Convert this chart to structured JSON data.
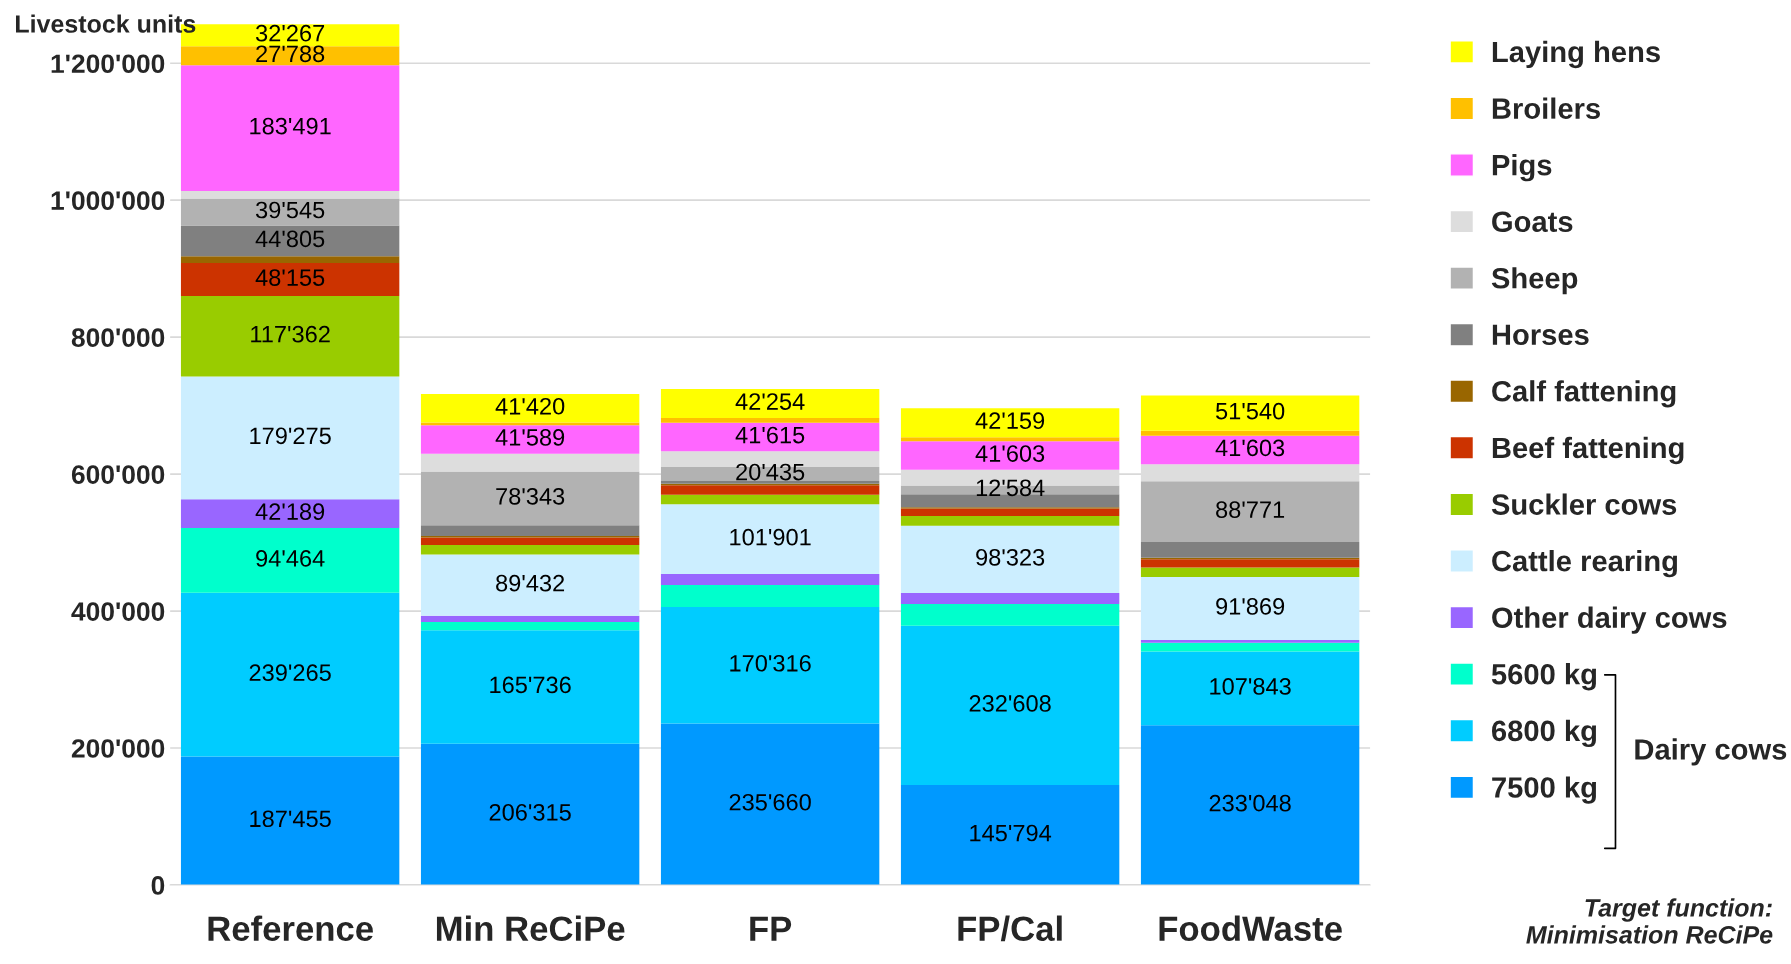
{
  "chart_data": {
    "type": "bar",
    "stacked": true,
    "ylabel": "Livestock units",
    "categories": [
      "Reference",
      "Min ReCiPe",
      "FP",
      "FP/Cal",
      "FoodWaste"
    ],
    "ylim": [
      0,
      1260000
    ],
    "yticks": [
      {
        "value": 0,
        "label": "0"
      },
      {
        "value": 200000,
        "label": "200'000"
      },
      {
        "value": 400000,
        "label": "400'000"
      },
      {
        "value": 600000,
        "label": "600'000"
      },
      {
        "value": 800000,
        "label": "800'000"
      },
      {
        "value": 1000000,
        "label": "1'000'000"
      },
      {
        "value": 1200000,
        "label": "1'200'000"
      }
    ],
    "grid": "y",
    "legend": "right",
    "series": [
      {
        "name": "7500 kg",
        "color": "#0099ff",
        "values": [
          187455,
          206315,
          235660,
          145794,
          233048
        ],
        "value_labels": [
          "187'455",
          "206'315",
          "235'660",
          "145'794",
          "233'048"
        ]
      },
      {
        "name": "6800 kg",
        "color": "#00ccff",
        "values": [
          239265,
          165736,
          170316,
          232608,
          107843
        ],
        "value_labels": [
          "239'265",
          "165'736",
          "170'316",
          "232'608",
          "107'843"
        ]
      },
      {
        "name": "5600 kg",
        "color": "#00ffcc",
        "values": [
          94464,
          12000,
          32000,
          32000,
          13000
        ],
        "value_labels": [
          "94'464",
          null,
          null,
          null,
          null
        ]
      },
      {
        "name": "Other dairy cows",
        "color": "#9966ff",
        "values": [
          42189,
          9000,
          16000,
          16000,
          4000
        ],
        "value_labels": [
          "42'189",
          null,
          null,
          null,
          null
        ]
      },
      {
        "name": "Cattle rearing",
        "color": "#cceeff",
        "values": [
          179275,
          89432,
          101901,
          98323,
          91869
        ],
        "value_labels": [
          "179'275",
          "89'432",
          "101'901",
          "98'323",
          "91'869"
        ]
      },
      {
        "name": "Suckler cows",
        "color": "#99cc00",
        "values": [
          117362,
          14000,
          14000,
          14000,
          14000
        ],
        "value_labels": [
          "117'362",
          null,
          null,
          null,
          null
        ]
      },
      {
        "name": "Beef fattening",
        "color": "#cc3300",
        "values": [
          48155,
          11000,
          14000,
          11000,
          12000
        ],
        "value_labels": [
          "48'155",
          null,
          null,
          null,
          null
        ]
      },
      {
        "name": "Calf fattening",
        "color": "#996600",
        "values": [
          10000,
          2000,
          2000,
          2000,
          2000
        ],
        "value_labels": [
          null,
          null,
          null,
          null,
          null
        ]
      },
      {
        "name": "Horses",
        "color": "#808080",
        "values": [
          44805,
          16000,
          4000,
          19000,
          23000
        ],
        "value_labels": [
          "44'805",
          null,
          null,
          null,
          null
        ]
      },
      {
        "name": "Sheep",
        "color": "#b2b2b2",
        "values": [
          39545,
          78343,
          20435,
          12584,
          88771
        ],
        "value_labels": [
          "39'545",
          "78'343",
          "20'435",
          "12'584",
          "88'771"
        ]
      },
      {
        "name": "Goats",
        "color": "#dddddd",
        "values": [
          11000,
          26000,
          23000,
          23000,
          25000
        ],
        "value_labels": [
          null,
          null,
          null,
          null,
          null
        ]
      },
      {
        "name": "Pigs",
        "color": "#ff66ff",
        "values": [
          183491,
          41589,
          41615,
          41603,
          41603
        ],
        "value_labels": [
          "183'491",
          "41'589",
          "41'615",
          "41'603",
          "41'603"
        ]
      },
      {
        "name": "Broilers",
        "color": "#ffc000",
        "values": [
          27788,
          4000,
          7000,
          6000,
          7000
        ],
        "value_labels": [
          "27'788",
          null,
          null,
          null,
          null
        ]
      },
      {
        "name": "Laying hens",
        "color": "#ffff00",
        "values": [
          32267,
          41420,
          42254,
          42159,
          51540
        ],
        "value_labels": [
          "32'267",
          "41'420",
          "42'254",
          "42'159",
          "51'540"
        ]
      }
    ],
    "annotations": [
      "Dairy cows",
      "Target function:\nMinimisation ReCiPe"
    ]
  }
}
